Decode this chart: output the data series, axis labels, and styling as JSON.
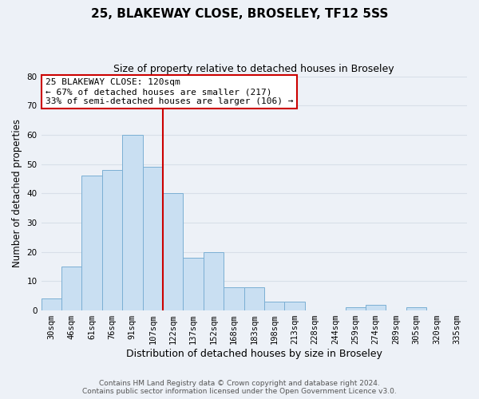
{
  "title": "25, BLAKEWAY CLOSE, BROSELEY, TF12 5SS",
  "subtitle": "Size of property relative to detached houses in Broseley",
  "xlabel": "Distribution of detached houses by size in Broseley",
  "ylabel": "Number of detached properties",
  "bar_labels": [
    "30sqm",
    "46sqm",
    "61sqm",
    "76sqm",
    "91sqm",
    "107sqm",
    "122sqm",
    "137sqm",
    "152sqm",
    "168sqm",
    "183sqm",
    "198sqm",
    "213sqm",
    "228sqm",
    "244sqm",
    "259sqm",
    "274sqm",
    "289sqm",
    "305sqm",
    "320sqm",
    "335sqm"
  ],
  "bar_values": [
    4,
    15,
    46,
    48,
    60,
    49,
    40,
    18,
    20,
    8,
    8,
    3,
    3,
    0,
    0,
    1,
    2,
    0,
    1,
    0,
    0
  ],
  "bar_color": "#c9dff2",
  "bar_edge_color": "#7bafd4",
  "property_line_index": 6,
  "property_line_color": "#cc0000",
  "annotation_line1": "25 BLAKEWAY CLOSE: 120sqm",
  "annotation_line2": "← 67% of detached houses are smaller (217)",
  "annotation_line3": "33% of semi-detached houses are larger (106) →",
  "annotation_box_facecolor": "#ffffff",
  "annotation_box_edgecolor": "#cc0000",
  "ylim": [
    0,
    80
  ],
  "yticks": [
    0,
    10,
    20,
    30,
    40,
    50,
    60,
    70,
    80
  ],
  "grid_color": "#d8dfe8",
  "background_color": "#edf1f7",
  "footer_line1": "Contains HM Land Registry data © Crown copyright and database right 2024.",
  "footer_line2": "Contains public sector information licensed under the Open Government Licence v3.0."
}
